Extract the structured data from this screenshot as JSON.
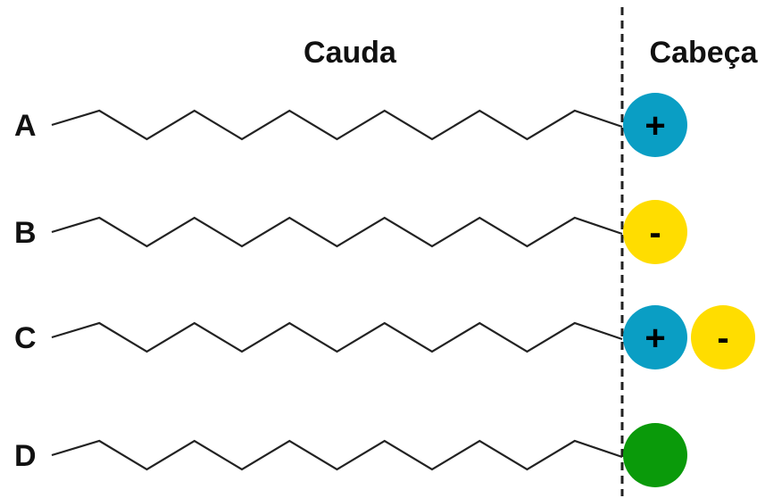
{
  "header": {
    "tail_label": "Cauda",
    "head_label": "Cabeça"
  },
  "rows": [
    {
      "label": "A",
      "heads": [
        {
          "symbol": "+",
          "color": "#0a9ec4"
        }
      ]
    },
    {
      "label": "B",
      "heads": [
        {
          "symbol": "-",
          "color": "#ffdd00"
        }
      ]
    },
    {
      "label": "C",
      "heads": [
        {
          "symbol": "+",
          "color": "#0a9ec4"
        },
        {
          "symbol": "-",
          "color": "#ffdd00"
        }
      ]
    },
    {
      "label": "D",
      "heads": [
        {
          "symbol": "",
          "color": "#0a9a0a"
        }
      ]
    }
  ]
}
